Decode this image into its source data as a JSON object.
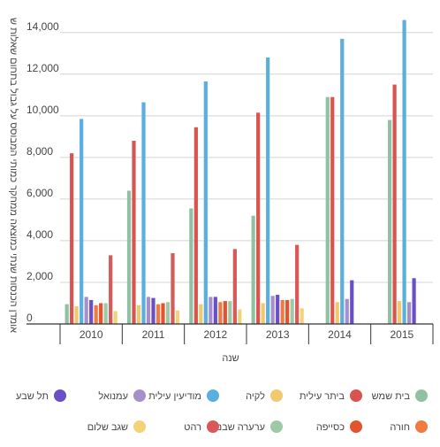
{
  "chart_data": {
    "type": "bar",
    "xlabel": "שנה",
    "ylabel": "אומדן הכנסות שנתי כמוצאה ממחקר כמותי המבוסס על גבול בתחום שאלות ש",
    "categories": [
      "2010",
      "2011",
      "2012",
      "2013",
      "2014",
      "2015"
    ],
    "ylim": [
      0,
      14500
    ],
    "yticks": [
      0,
      2000,
      4000,
      6000,
      8000,
      10000,
      12000,
      14000
    ],
    "ytick_labels": [
      "0",
      "2,000",
      "4,000",
      "6,000",
      "8,000",
      "10,000",
      "12,000",
      "14,000"
    ],
    "grid": true,
    "legend_position": "bottom",
    "series": [
      {
        "name": "בית שמש",
        "color": "#8fc1a2",
        "values": [
          950,
          6400,
          5550,
          5200,
          10900,
          9800
        ]
      },
      {
        "name": "ביתר עילית",
        "color": "#d9534f",
        "values": [
          8200,
          8800,
          9450,
          10150,
          10900,
          11500
        ]
      },
      {
        "name": "לקיה",
        "color": "#f0c96e",
        "values": [
          850,
          900,
          950,
          1000,
          1050,
          1100
        ]
      },
      {
        "name": "מודיעין עילית",
        "color": "#5aaee0",
        "values": [
          9850,
          10650,
          11650,
          12800,
          13700,
          14600
        ]
      },
      {
        "name": "עמנואל",
        "color": "#a78fcb",
        "values": [
          1300,
          1300,
          1300,
          1350,
          1200,
          1050
        ]
      },
      {
        "name": "תל שבע",
        "color": "#6a4fc6",
        "values": [
          1150,
          1250,
          1300,
          1400,
          2100,
          2200
        ]
      },
      {
        "name": "חורה",
        "color": "#f07a3f",
        "values": [
          900,
          950,
          1050,
          1150,
          null,
          null
        ]
      },
      {
        "name": "כסייפה",
        "color": "#e3532e",
        "values": [
          1000,
          1000,
          1100,
          1150,
          null,
          null
        ]
      },
      {
        "name": "ערערה שבנגב",
        "color": "#9ec9a6",
        "values": [
          1000,
          1050,
          1100,
          1200,
          null,
          null
        ]
      },
      {
        "name": "רהט",
        "color": "#d95858",
        "values": [
          3300,
          3400,
          3600,
          3800,
          null,
          null
        ]
      },
      {
        "name": "שגב שלום",
        "color": "#f3d37a",
        "values": [
          620,
          650,
          700,
          750,
          null,
          null
        ]
      }
    ]
  }
}
